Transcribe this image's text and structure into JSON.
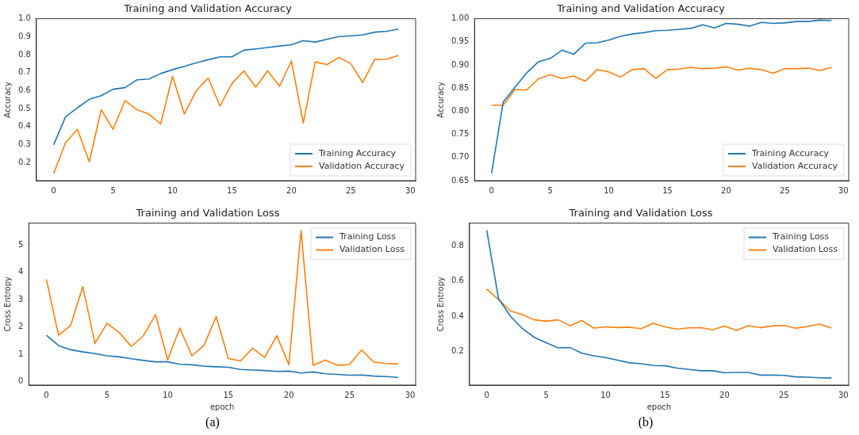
{
  "chart_data": [
    {
      "type": "line",
      "title": "Training and Validation Accuracy",
      "ylabel": "Accuracy",
      "xlim": [
        -1.45,
        30.45
      ],
      "xticks": [
        0,
        5,
        10,
        15,
        20,
        25,
        30
      ],
      "ylim": [
        0.1,
        1.0
      ],
      "yticks": [
        {
          "value": 0.2,
          "label": "0.2"
        },
        {
          "value": 0.3,
          "label": "0.3"
        },
        {
          "value": 0.4,
          "label": "0.4"
        },
        {
          "value": 0.5,
          "label": "0.5"
        },
        {
          "value": 0.6,
          "label": "0.6"
        },
        {
          "value": 0.7,
          "label": "0.7"
        },
        {
          "value": 0.8,
          "label": "0.8"
        },
        {
          "value": 0.9,
          "label": "0.9"
        },
        {
          "value": 1.0,
          "label": "1.0"
        }
      ],
      "legend": "bottom right",
      "grid": false,
      "x": [
        0,
        1,
        2,
        3,
        4,
        5,
        6,
        7,
        8,
        9,
        10,
        11,
        12,
        13,
        14,
        15,
        16,
        17,
        18,
        19,
        20,
        21,
        22,
        23,
        24,
        25,
        26,
        27,
        28,
        29
      ],
      "series": [
        {
          "name": "Training Accuracy",
          "color": "#1f77b4",
          "values": [
            0.3,
            0.455,
            0.505,
            0.552,
            0.572,
            0.608,
            0.617,
            0.66,
            0.665,
            0.695,
            0.717,
            0.735,
            0.755,
            0.772,
            0.788,
            0.788,
            0.825,
            0.832,
            0.84,
            0.848,
            0.855,
            0.878,
            0.87,
            0.886,
            0.9,
            0.905,
            0.91,
            0.925,
            0.93,
            0.942
          ]
        },
        {
          "name": "Validation Accuracy",
          "color": "#ff7f0e",
          "values": [
            0.14,
            0.31,
            0.385,
            0.205,
            0.495,
            0.385,
            0.545,
            0.495,
            0.47,
            0.415,
            0.68,
            0.47,
            0.6,
            0.67,
            0.515,
            0.64,
            0.71,
            0.62,
            0.71,
            0.625,
            0.765,
            0.42,
            0.76,
            0.745,
            0.785,
            0.75,
            0.645,
            0.773,
            0.775,
            0.796
          ]
        }
      ]
    },
    {
      "type": "line",
      "title": "Training and Validation Accuracy",
      "ylabel": "Accuracy",
      "xlim": [
        -1.45,
        30.45
      ],
      "xticks": [
        0,
        5,
        10,
        15,
        20,
        25,
        30
      ],
      "ylim": [
        0.65,
        1.0
      ],
      "yticks": [
        {
          "value": 0.65,
          "label": "0.65"
        },
        {
          "value": 0.7,
          "label": "0.70"
        },
        {
          "value": 0.75,
          "label": "0.75"
        },
        {
          "value": 0.8,
          "label": "0.80"
        },
        {
          "value": 0.85,
          "label": "0.85"
        },
        {
          "value": 0.9,
          "label": "0.90"
        },
        {
          "value": 0.95,
          "label": "0.95"
        },
        {
          "value": 1.0,
          "label": "1.00"
        }
      ],
      "legend": "bottom right",
      "grid": false,
      "x": [
        0,
        1,
        2,
        3,
        4,
        5,
        6,
        7,
        8,
        9,
        10,
        11,
        12,
        13,
        14,
        15,
        16,
        17,
        18,
        19,
        20,
        21,
        22,
        23,
        24,
        25,
        26,
        27,
        28,
        29
      ],
      "series": [
        {
          "name": "Training Accuracy",
          "color": "#1f77b4",
          "values": [
            0.666,
            0.82,
            0.852,
            0.883,
            0.907,
            0.914,
            0.932,
            0.923,
            0.947,
            0.948,
            0.954,
            0.962,
            0.967,
            0.97,
            0.974,
            0.975,
            0.977,
            0.979,
            0.987,
            0.98,
            0.99,
            0.988,
            0.984,
            0.992,
            0.99,
            0.991,
            0.994,
            0.994,
            0.997,
            0.996
          ]
        },
        {
          "name": "Validation Accuracy",
          "color": "#ff7f0e",
          "values": [
            0.813,
            0.813,
            0.847,
            0.846,
            0.87,
            0.879,
            0.871,
            0.876,
            0.865,
            0.89,
            0.885,
            0.874,
            0.89,
            0.892,
            0.871,
            0.89,
            0.891,
            0.895,
            0.892,
            0.893,
            0.896,
            0.889,
            0.893,
            0.89,
            0.882,
            0.892,
            0.892,
            0.893,
            0.888,
            0.895
          ]
        }
      ]
    },
    {
      "type": "line",
      "title": "Training and Validation Loss",
      "xlabel": "epoch",
      "ylabel": "Cross Entropy",
      "xlim": [
        -1.45,
        30.45
      ],
      "xticks": [
        0,
        5,
        10,
        15,
        20,
        25,
        30
      ],
      "ylim": [
        -0.12,
        5.79
      ],
      "yticks": [
        0,
        1,
        2,
        3,
        4,
        5
      ],
      "legend": "top right",
      "grid": false,
      "annotations": [
        "(a)"
      ],
      "x": [
        0,
        1,
        2,
        3,
        4,
        5,
        6,
        7,
        8,
        9,
        10,
        11,
        12,
        13,
        14,
        15,
        16,
        17,
        18,
        19,
        20,
        21,
        22,
        23,
        24,
        25,
        26,
        27,
        28,
        29
      ],
      "series": [
        {
          "name": "Training Loss",
          "color": "#1f77b4",
          "values": [
            1.7,
            1.32,
            1.17,
            1.09,
            1.03,
            0.95,
            0.91,
            0.84,
            0.78,
            0.73,
            0.73,
            0.64,
            0.62,
            0.57,
            0.55,
            0.53,
            0.45,
            0.43,
            0.41,
            0.38,
            0.39,
            0.32,
            0.36,
            0.29,
            0.27,
            0.24,
            0.25,
            0.21,
            0.19,
            0.16
          ]
        },
        {
          "name": "Validation Loss",
          "color": "#ff7f0e",
          "values": [
            3.74,
            1.7,
            2.06,
            3.47,
            1.4,
            2.13,
            1.8,
            1.29,
            1.68,
            2.45,
            0.8,
            1.96,
            0.95,
            1.33,
            2.38,
            0.85,
            0.76,
            1.22,
            0.89,
            1.68,
            0.62,
            5.52,
            0.6,
            0.79,
            0.6,
            0.63,
            1.16,
            0.72,
            0.67,
            0.65
          ]
        }
      ]
    },
    {
      "type": "line",
      "title": "Training and Validation Loss",
      "xlabel": "epoch",
      "ylabel": "Cross Entropy",
      "xlim": [
        -1.45,
        30.45
      ],
      "xticks": [
        0,
        5,
        10,
        15,
        20,
        25,
        30
      ],
      "ylim": [
        0.008,
        0.931
      ],
      "yticks": [
        {
          "value": 0.2,
          "label": "0.2"
        },
        {
          "value": 0.4,
          "label": "0.4"
        },
        {
          "value": 0.6,
          "label": "0.6"
        },
        {
          "value": 0.8,
          "label": "0.8"
        }
      ],
      "legend": "top right",
      "grid": false,
      "annotations": [
        "(b)"
      ],
      "x": [
        0,
        1,
        2,
        3,
        4,
        5,
        6,
        7,
        8,
        9,
        10,
        11,
        12,
        13,
        14,
        15,
        16,
        17,
        18,
        19,
        20,
        21,
        22,
        23,
        24,
        25,
        26,
        27,
        28,
        29
      ],
      "series": [
        {
          "name": "Training Loss",
          "color": "#1f77b4",
          "values": [
            0.89,
            0.5,
            0.4,
            0.33,
            0.28,
            0.25,
            0.22,
            0.222,
            0.19,
            0.175,
            0.165,
            0.15,
            0.135,
            0.13,
            0.12,
            0.118,
            0.105,
            0.097,
            0.09,
            0.09,
            0.078,
            0.08,
            0.08,
            0.065,
            0.065,
            0.063,
            0.055,
            0.053,
            0.05,
            0.048
          ]
        },
        {
          "name": "Validation Loss",
          "color": "#ff7f0e",
          "values": [
            0.555,
            0.495,
            0.43,
            0.41,
            0.38,
            0.372,
            0.38,
            0.346,
            0.376,
            0.333,
            0.34,
            0.336,
            0.338,
            0.33,
            0.36,
            0.34,
            0.326,
            0.334,
            0.335,
            0.323,
            0.344,
            0.32,
            0.347,
            0.335,
            0.345,
            0.348,
            0.332,
            0.342,
            0.356,
            0.333
          ]
        }
      ]
    }
  ]
}
